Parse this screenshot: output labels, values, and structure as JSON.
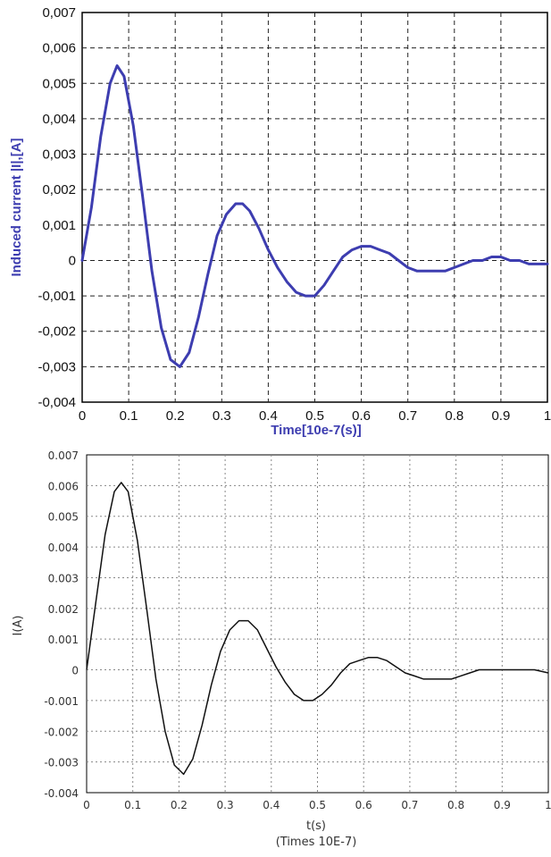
{
  "chart_data": [
    {
      "type": "line",
      "title": "",
      "xlabel": "Time[10e-7(s)]",
      "ylabel": "Induced current |I|,[A]",
      "xlim": [
        0,
        1
      ],
      "ylim": [
        -0.004,
        0.007
      ],
      "grid": true,
      "line_color": "#3d3db0",
      "label_color": "#3d3db0",
      "x_ticks": [
        "0",
        "0.1",
        "0.2",
        "0.3",
        "0.4",
        "0.5",
        "0.6",
        "0.7",
        "0.8",
        "0.9",
        "1"
      ],
      "y_ticks": [
        "-0,004",
        "-0,003",
        "-0,002",
        "-0,001",
        "0",
        "0,001",
        "0,002",
        "0,003",
        "0,004",
        "0,005",
        "0,006",
        "0,007"
      ],
      "series": [
        {
          "x": [
            0,
            0.02,
            0.04,
            0.06,
            0.075,
            0.09,
            0.11,
            0.13,
            0.15,
            0.17,
            0.19,
            0.21,
            0.23,
            0.25,
            0.27,
            0.29,
            0.31,
            0.33,
            0.345,
            0.36,
            0.38,
            0.4,
            0.42,
            0.44,
            0.46,
            0.48,
            0.5,
            0.52,
            0.54,
            0.56,
            0.58,
            0.6,
            0.62,
            0.64,
            0.66,
            0.68,
            0.7,
            0.72,
            0.74,
            0.76,
            0.78,
            0.8,
            0.82,
            0.84,
            0.86,
            0.88,
            0.9,
            0.92,
            0.94,
            0.96,
            0.98,
            1.0
          ],
          "y": [
            0,
            0.0015,
            0.0035,
            0.005,
            0.0055,
            0.0052,
            0.0038,
            0.0018,
            -0.0003,
            -0.0019,
            -0.0028,
            -0.003,
            -0.0026,
            -0.0016,
            -0.0004,
            0.0007,
            0.0013,
            0.0016,
            0.0016,
            0.0014,
            0.0009,
            0.0003,
            -0.0002,
            -0.0006,
            -0.0009,
            -0.001,
            -0.001,
            -0.0007,
            -0.0003,
            0.0001,
            0.0003,
            0.0004,
            0.0004,
            0.0003,
            0.0002,
            0.0,
            -0.0002,
            -0.0003,
            -0.0003,
            -0.0003,
            -0.0003,
            -0.0002,
            -0.0001,
            0.0,
            0.0,
            0.0001,
            0.0001,
            0.0,
            0.0,
            -0.0001,
            -0.0001,
            -0.0001
          ]
        }
      ]
    },
    {
      "type": "line",
      "title": "",
      "xlabel": "t(s)",
      "xlabel2": "(Times 10E-7)",
      "ylabel": "I(A)",
      "xlim": [
        0,
        1
      ],
      "ylim": [
        -0.004,
        0.007
      ],
      "grid": true,
      "line_color": "#111111",
      "x_ticks": [
        "0",
        "0.1",
        "0.2",
        "0.3",
        "0.4",
        "0.5",
        "0.6",
        "0.7",
        "0.8",
        "0.9",
        "1"
      ],
      "y_ticks": [
        "-0.004",
        "-0.003",
        "-0.002",
        "-0.001",
        "0",
        "0.001",
        "0.002",
        "0.003",
        "0.004",
        "0.005",
        "0.006",
        "0.007"
      ],
      "series": [
        {
          "x": [
            0,
            0.02,
            0.04,
            0.06,
            0.075,
            0.09,
            0.11,
            0.13,
            0.15,
            0.17,
            0.19,
            0.21,
            0.23,
            0.25,
            0.27,
            0.29,
            0.31,
            0.33,
            0.35,
            0.37,
            0.39,
            0.41,
            0.43,
            0.45,
            0.47,
            0.49,
            0.51,
            0.53,
            0.55,
            0.57,
            0.59,
            0.61,
            0.63,
            0.65,
            0.67,
            0.69,
            0.71,
            0.73,
            0.75,
            0.77,
            0.79,
            0.81,
            0.83,
            0.85,
            0.87,
            0.89,
            0.91,
            0.93,
            0.95,
            0.97,
            1.0
          ],
          "y": [
            0,
            0.0022,
            0.0044,
            0.0058,
            0.0061,
            0.0058,
            0.0042,
            0.002,
            -0.0003,
            -0.002,
            -0.0031,
            -0.0034,
            -0.0029,
            -0.0018,
            -0.0005,
            0.0006,
            0.0013,
            0.0016,
            0.0016,
            0.0013,
            0.0007,
            0.0001,
            -0.0004,
            -0.0008,
            -0.001,
            -0.001,
            -0.0008,
            -0.0005,
            -0.0001,
            0.0002,
            0.0003,
            0.0004,
            0.0004,
            0.0003,
            0.0001,
            -0.0001,
            -0.0002,
            -0.0003,
            -0.0003,
            -0.0003,
            -0.0003,
            -0.0002,
            -0.0001,
            0.0,
            0.0,
            0.0,
            0.0,
            0.0,
            0.0,
            0.0,
            -0.0001
          ]
        }
      ]
    }
  ]
}
